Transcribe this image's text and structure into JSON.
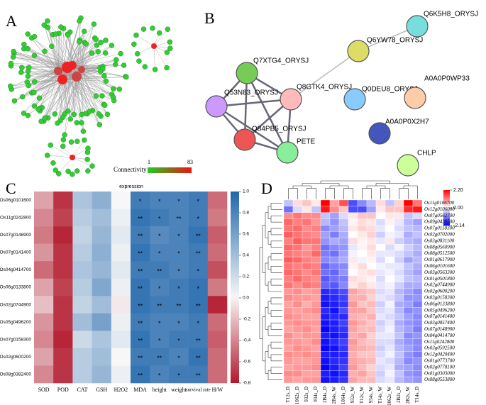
{
  "panel_a": {
    "label": "A",
    "legend": {
      "title": "Connectivity",
      "min": 1,
      "max": 83
    }
  },
  "panel_b": {
    "label": "B",
    "nodes": [
      "Q6K5H8_ORYSJ",
      "Q6YW78_ORYSJ",
      "Q7XTG4_ORYSJ",
      "Q8GTK4_ORYSJ",
      "Q0DEU8_ORYSJ",
      "A0A0P0WP33",
      "Q53N83_ORYSJ",
      "Q84PB5_ORYSJ",
      "PETE",
      "A0A0P0X2H7",
      "CHLP"
    ]
  },
  "panel_c": {
    "label": "C",
    "type": "heatmap",
    "title": "expression",
    "rows": [
      "Os06g0101600",
      "Os11g0242800",
      "Os07g0148900",
      "Os07g0141400",
      "Os04g0414700",
      "Os06g0133800",
      "Os02g0744900",
      "Os05g0496200",
      "Os07g0158300",
      "Os02g0600200",
      "Os08g0382400"
    ],
    "columns": [
      "SOD",
      "POD",
      "CAT",
      "GSH",
      "H2O2",
      "MDA",
      "height",
      "weight",
      "survival rate",
      "H/W"
    ],
    "values": [
      [
        -0.3,
        -0.7,
        0.35,
        0.5,
        0.0,
        0.85,
        0.8,
        0.8,
        0.85,
        -0.5
      ],
      [
        -0.4,
        -0.65,
        0.3,
        0.4,
        0.05,
        0.9,
        0.85,
        0.8,
        0.85,
        -0.45
      ],
      [
        -0.45,
        -0.75,
        0.25,
        0.45,
        0.1,
        0.85,
        0.75,
        0.8,
        0.9,
        -0.55
      ],
      [
        -0.35,
        -0.7,
        0.3,
        0.5,
        0.05,
        0.9,
        0.8,
        0.8,
        0.85,
        -0.5
      ],
      [
        -0.5,
        -0.7,
        0.35,
        0.45,
        0.1,
        0.85,
        0.85,
        0.8,
        0.85,
        -0.6
      ],
      [
        -0.3,
        -0.65,
        0.3,
        0.55,
        0.05,
        0.9,
        0.8,
        0.85,
        0.9,
        -0.45
      ],
      [
        -0.2,
        -0.7,
        0.25,
        0.4,
        -0.05,
        0.9,
        0.85,
        0.85,
        0.9,
        -0.75
      ],
      [
        -0.35,
        -0.7,
        0.4,
        0.6,
        0.05,
        0.85,
        0.8,
        0.8,
        0.85,
        -0.5
      ],
      [
        -0.4,
        -0.75,
        0.2,
        0.35,
        0.1,
        0.9,
        0.8,
        0.85,
        0.85,
        -0.55
      ],
      [
        -0.3,
        -0.7,
        0.3,
        0.4,
        0.0,
        0.85,
        0.85,
        0.8,
        0.9,
        -0.5
      ],
      [
        -0.4,
        -0.7,
        0.3,
        0.45,
        0.05,
        0.9,
        0.8,
        0.85,
        0.85,
        -0.5
      ]
    ],
    "stars": [
      [
        "*",
        "*",
        "*",
        "*"
      ],
      [
        "**",
        "*",
        "**",
        "*"
      ],
      [
        "**",
        "*",
        "*",
        "**"
      ],
      [
        "**",
        "*",
        "*",
        "**"
      ],
      [
        "**",
        "**",
        "*",
        "*"
      ],
      [
        "**",
        "*",
        "*",
        "*"
      ],
      [
        "**",
        "**",
        "**",
        "**"
      ],
      [
        "**",
        "*",
        "*",
        "*"
      ],
      [
        "**",
        "*",
        "*",
        "**"
      ],
      [
        "**",
        "**",
        "*",
        "**"
      ],
      [
        "**",
        "*",
        "*",
        "**"
      ]
    ],
    "clim": [
      -0.8,
      1
    ],
    "ticks": [
      {
        "value": 1,
        "label": "1.0"
      },
      0.8,
      0.6,
      0.4,
      0.2,
      {
        "value": 0,
        "label": "0.0"
      },
      -0.2,
      -0.4,
      -0.6,
      -0.8
    ]
  },
  "panel_d": {
    "label": "D",
    "type": "heatmap",
    "rows": [
      "Os11g0106700",
      "Os12g0106000",
      "Os07g0562700",
      "Os09g0439500",
      "Os07g0158300",
      "Os02g0702000",
      "Os03g0831100",
      "Os08g0560900",
      "Os08g0512500",
      "Os01g0617900",
      "Os06g0101600",
      "Os03g0563300",
      "Os01g0501800",
      "Os02g0744900",
      "Os02g0600200",
      "Os03g0158300",
      "Os06g0133800",
      "Os05g0496200",
      "Os07g0141400",
      "Os03g0857400",
      "Os07g0148900",
      "Os04g0414700",
      "Os11g0242800",
      "Os03g0592500",
      "Os12g0420400",
      "Os01g0773700",
      "Os03g0778100",
      "Os01g0303000",
      "Os08g0553800"
    ],
    "columns": [
      "T12s_D",
      "1062s_D",
      "932s_D",
      "934s_D",
      "2B4s_D",
      "2B4s_W",
      "1064s_D",
      "932s_W",
      "T12s_W",
      "934s_W",
      "T14s_W",
      "1062s_W",
      "2B2s_D",
      "2B2s_W",
      "T14s_D"
    ],
    "values": [
      [
        -0.5,
        0.3,
        0.5,
        0.2,
        2.2,
        0.8,
        1.5,
        -1.5,
        -1.0,
        -0.6,
        0.3,
        -0.5,
        0.4,
        2.2,
        1.2
      ],
      [
        -1.2,
        -0.3,
        0.2,
        -0.5,
        2.0,
        1.0,
        0.5,
        -1.5,
        -1.5,
        -0.8,
        0.2,
        0.5,
        0.5,
        1.8,
        2.0
      ],
      [
        1.0,
        1.2,
        1.0,
        1.0,
        -0.5,
        -0.8,
        -0.3,
        0.2,
        0.5,
        0.5,
        0.0,
        0.2,
        0.2,
        -0.5,
        -0.3
      ],
      [
        1.3,
        1.1,
        1.2,
        0.9,
        -0.6,
        -0.9,
        -0.5,
        0.1,
        0.3,
        0.2,
        -0.3,
        0.1,
        -0.2,
        -0.6,
        -0.8
      ],
      [
        1.2,
        1.3,
        1.0,
        1.1,
        -1.0,
        -0.8,
        -0.6,
        0.2,
        0.4,
        0.3,
        -0.2,
        0.0,
        -0.3,
        -0.5,
        -0.6
      ],
      [
        1.4,
        1.2,
        1.1,
        1.0,
        -0.8,
        -1.1,
        -0.7,
        0.0,
        0.2,
        0.4,
        -0.4,
        -0.1,
        -0.2,
        -0.7,
        -0.5
      ],
      [
        1.1,
        1.4,
        1.2,
        1.2,
        -0.9,
        -0.7,
        -0.8,
        0.3,
        0.1,
        0.2,
        -0.2,
        0.2,
        -0.4,
        -0.6,
        -0.7
      ],
      [
        1.3,
        1.2,
        0.9,
        1.1,
        -1.2,
        -1.0,
        -0.9,
        -0.2,
        0.1,
        0.3,
        0.0,
        -0.3,
        -0.1,
        -0.4,
        -0.6
      ],
      [
        1.2,
        1.1,
        1.0,
        1.3,
        -1.1,
        -1.2,
        -0.8,
        -0.1,
        0.0,
        0.2,
        -0.2,
        -0.2,
        -0.3,
        -0.5,
        -0.7
      ],
      [
        1.4,
        1.3,
        1.1,
        1.0,
        -1.0,
        -0.9,
        -0.7,
        0.2,
        -0.1,
        0.1,
        -0.3,
        0.0,
        -0.4,
        -0.8,
        -0.6
      ],
      [
        1.2,
        1.1,
        1.2,
        1.1,
        -1.3,
        -1.1,
        -1.0,
        0.1,
        0.3,
        0.0,
        -0.1,
        -0.2,
        -0.2,
        -0.5,
        -0.7
      ],
      [
        1.3,
        1.2,
        1.0,
        1.2,
        -1.2,
        -1.3,
        -0.9,
        0.0,
        0.2,
        0.3,
        -0.2,
        -0.1,
        -0.3,
        -0.6,
        -0.8
      ],
      [
        1.1,
        1.3,
        1.1,
        1.0,
        -1.4,
        -1.2,
        -1.1,
        0.3,
        0.2,
        0.1,
        -0.3,
        0.0,
        -0.2,
        -0.5,
        -0.6
      ],
      [
        1.2,
        1.0,
        1.2,
        1.1,
        -1.3,
        -1.4,
        -1.0,
        0.2,
        0.4,
        0.2,
        -0.2,
        -0.1,
        -0.4,
        -0.7,
        -0.7
      ],
      [
        0.9,
        1.0,
        0.8,
        0.9,
        -1.8,
        -1.7,
        -1.5,
        0.8,
        0.6,
        0.5,
        -0.3,
        -0.2,
        -0.6,
        -0.8,
        -1.0
      ],
      [
        1.0,
        0.9,
        0.9,
        0.8,
        -1.9,
        -1.8,
        -1.6,
        0.7,
        0.7,
        0.4,
        -0.2,
        -0.3,
        -0.5,
        -0.9,
        -0.9
      ],
      [
        0.8,
        1.0,
        0.7,
        0.9,
        -2.0,
        -1.9,
        -1.7,
        0.9,
        0.5,
        0.6,
        -0.4,
        -0.1,
        -0.7,
        -0.8,
        -1.1
      ],
      [
        0.9,
        0.8,
        0.9,
        1.0,
        -1.8,
        -2.0,
        -1.5,
        0.8,
        0.8,
        0.5,
        -0.3,
        -0.2,
        -0.6,
        -1.0,
        -0.9
      ],
      [
        1.0,
        0.9,
        0.8,
        0.8,
        -1.9,
        -1.8,
        -1.8,
        0.7,
        0.6,
        0.7,
        -0.2,
        -0.3,
        -0.5,
        -0.8,
        -1.0
      ],
      [
        0.9,
        1.0,
        0.9,
        0.9,
        -2.0,
        -1.9,
        -1.6,
        0.9,
        0.7,
        0.5,
        -0.4,
        -0.2,
        -0.7,
        -0.9,
        -1.0
      ],
      [
        0.8,
        0.9,
        1.0,
        0.8,
        -2.1,
        -1.9,
        -1.7,
        0.8,
        0.6,
        0.6,
        -0.3,
        -0.1,
        -0.6,
        -0.8,
        -1.1
      ],
      [
        1.0,
        0.8,
        0.9,
        0.9,
        -1.9,
        -2.0,
        -1.8,
        0.7,
        0.8,
        0.4,
        -0.2,
        -0.2,
        -0.5,
        -1.0,
        -0.9
      ],
      [
        0.9,
        0.9,
        0.8,
        1.0,
        -2.0,
        -1.8,
        -1.6,
        0.9,
        0.6,
        0.5,
        -0.3,
        -0.3,
        -0.7,
        -0.9,
        -1.0
      ],
      [
        0.8,
        1.0,
        0.9,
        0.8,
        -2.1,
        -2.0,
        -1.7,
        0.8,
        0.7,
        0.6,
        -0.4,
        -0.2,
        -0.6,
        -0.8,
        -1.0
      ],
      [
        1.0,
        0.9,
        1.0,
        0.9,
        -1.9,
        -1.9,
        -1.8,
        0.7,
        0.5,
        0.5,
        -0.3,
        -0.1,
        -0.5,
        -0.9,
        -1.1
      ],
      [
        0.9,
        0.8,
        0.8,
        0.9,
        -2.0,
        -1.8,
        -1.7,
        0.8,
        0.7,
        0.6,
        -0.2,
        -0.3,
        -0.6,
        -1.0,
        -0.9
      ],
      [
        0.8,
        0.9,
        0.9,
        1.0,
        -2.1,
        -1.9,
        -1.6,
        0.9,
        0.6,
        0.4,
        -0.3,
        -0.2,
        -0.7,
        -0.8,
        -1.0
      ],
      [
        1.0,
        1.0,
        0.8,
        0.8,
        -1.9,
        -2.0,
        -1.8,
        0.7,
        0.8,
        0.5,
        -0.4,
        -0.1,
        -0.5,
        -0.9,
        -1.0
      ],
      [
        0.9,
        0.8,
        0.9,
        0.9,
        -2.0,
        -1.9,
        -1.7,
        0.8,
        0.6,
        0.6,
        -0.3,
        -0.2,
        -0.6,
        -0.8,
        -0.9
      ]
    ],
    "clim": [
      -2.14,
      2.2
    ],
    "ticks": [
      {
        "value": 2.2,
        "label": "2.20"
      },
      {
        "value": 0,
        "label": "0.00"
      },
      -2.14
    ]
  }
}
